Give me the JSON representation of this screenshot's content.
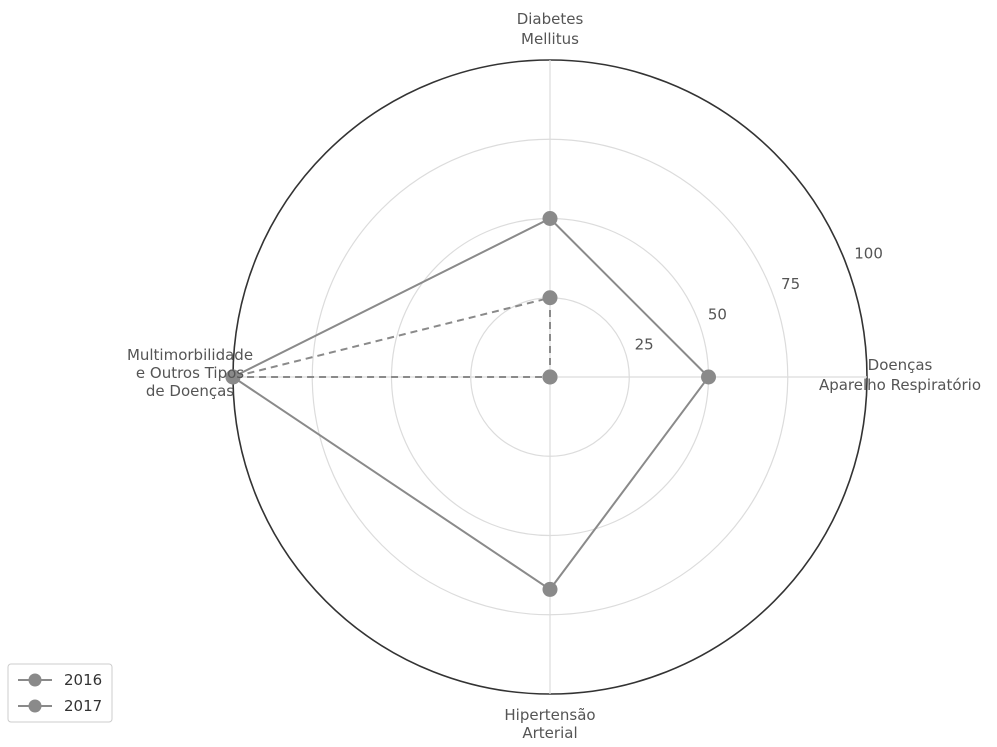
{
  "chart_data": {
    "type": "radar",
    "title": "",
    "categories": [
      [
        "Doenças",
        "Aparelho Respiratório"
      ],
      [
        "Diabetes",
        "Mellitus"
      ],
      [
        "Multimorbilidade",
        "e Outros Tipos",
        "de Doenças"
      ],
      [
        "Hipertensão",
        "Arterial"
      ]
    ],
    "radial_ticks": [
      "25",
      "50",
      "75",
      "100"
    ],
    "radial_tick_values": [
      25,
      50,
      75,
      100
    ],
    "rlim": [
      0,
      100
    ],
    "grid": true,
    "legend_position": "bottom-left",
    "series": [
      {
        "name": "2016",
        "values": [
          0,
          25,
          100,
          0
        ],
        "line_style": "dashed",
        "color": "#8a8a8a"
      },
      {
        "name": "2017",
        "values": [
          50,
          50,
          100,
          67
        ],
        "line_style": "solid",
        "color": "#8a8a8a"
      }
    ]
  }
}
